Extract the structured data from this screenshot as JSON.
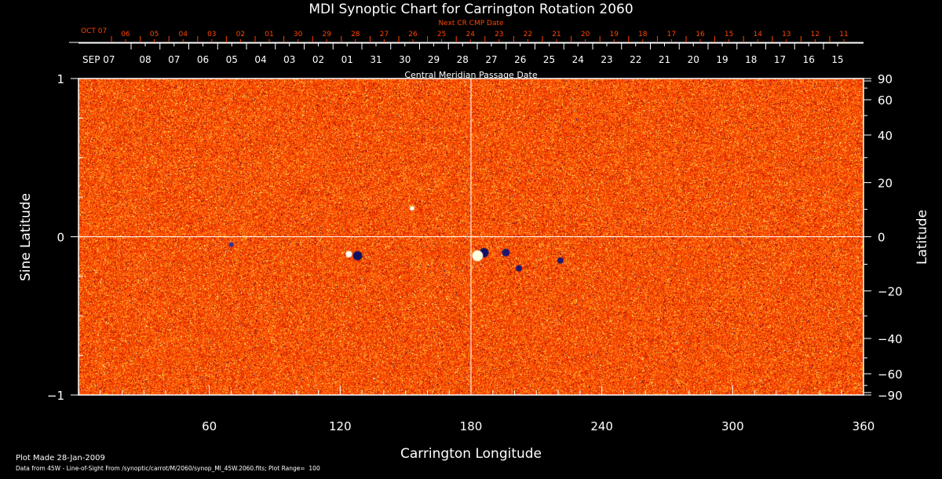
{
  "chart_data": {
    "type": "heatmap",
    "title": "MDI Synoptic Chart for Carrington Rotation 2060",
    "xlabel": "Carrington Longitude",
    "ylabel_left": "Sine Latitude",
    "ylabel_right": "Latitude",
    "xlim": [
      0,
      360
    ],
    "ylim": [
      -1,
      1
    ],
    "x_ticks": [
      "60",
      "120",
      "180",
      "240",
      "300",
      "360"
    ],
    "y_ticks_left": [
      "1",
      "0",
      "−1"
    ],
    "y_ticks_right": [
      "90",
      "60",
      "40",
      "20",
      "0",
      "−20",
      "−40",
      "−60",
      "−90"
    ],
    "y_ticks_right_values": [
      90,
      60,
      40,
      20,
      0,
      -20,
      -40,
      -60,
      -90
    ],
    "top_axis_label": "Central Meridian Passage Date",
    "top_axis_start": "SEP 07",
    "top_axis_dates": [
      "08",
      "07",
      "06",
      "05",
      "04",
      "03",
      "02",
      "01",
      "31",
      "30",
      "29",
      "28",
      "27",
      "26",
      "25",
      "24",
      "23",
      "22",
      "21",
      "20",
      "19",
      "18",
      "17",
      "16",
      "15"
    ],
    "next_axis_label": "Next CR CMP Date",
    "next_axis_start": "OCT 07",
    "next_axis_dates": [
      "06",
      "05",
      "04",
      "03",
      "02",
      "01",
      "30",
      "29",
      "28",
      "27",
      "26",
      "25",
      "24",
      "23",
      "22",
      "21",
      "20",
      "19",
      "18",
      "17",
      "16",
      "15",
      "14",
      "13",
      "12",
      "11"
    ],
    "colormap": {
      "negative": "#1a1a8c",
      "background": "#ff4a00",
      "positive": "#ffffc0"
    },
    "crosshair": {
      "longitude": 180,
      "sine_latitude": 0
    }
  },
  "footer": {
    "plot_made": "Plot Made 28-Jan-2009",
    "data_from": "Data from 45W - Line-of-Sight From /synoptic/carrot/M/2060/synop_Ml_45W.2060.fits; Plot Range=  100"
  },
  "colors": {
    "next_axis": "#ff4500",
    "axis": "#ffffff"
  }
}
